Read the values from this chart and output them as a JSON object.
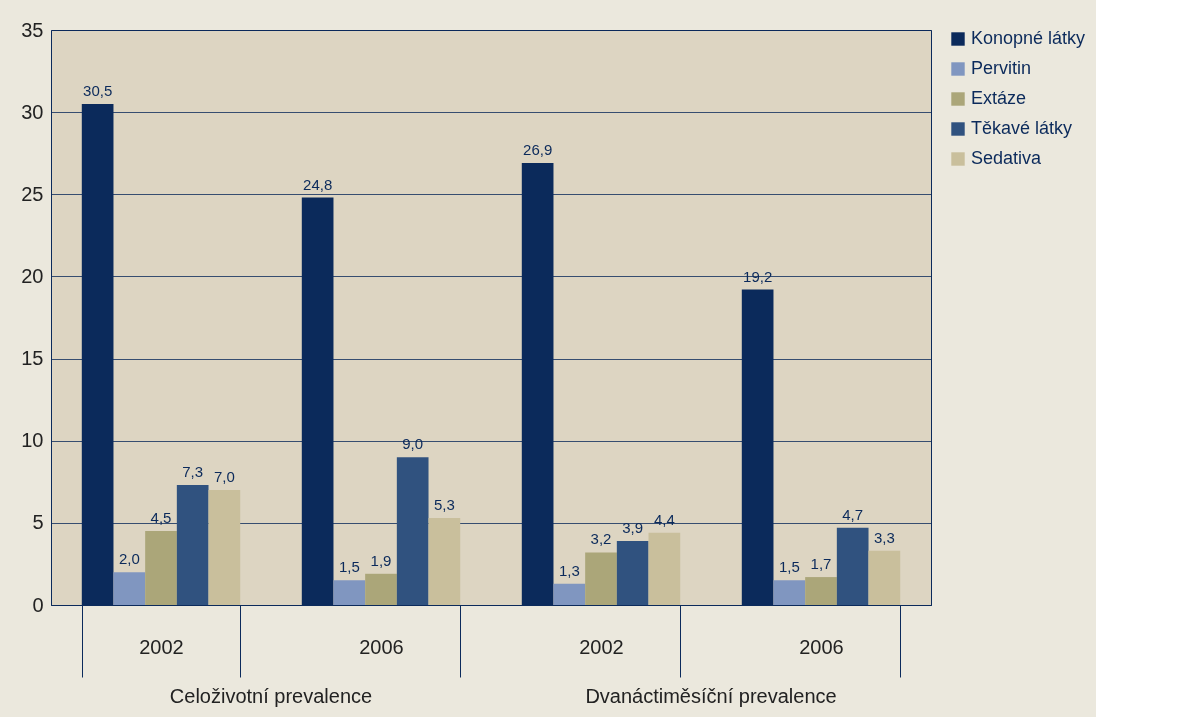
{
  "chart_data": {
    "type": "bar",
    "categories": [
      "2002",
      "2006",
      "2002",
      "2006"
    ],
    "annotations": [
      "Celoživotní prevalence",
      "Dvanáctiměsíční prevalence"
    ],
    "series": [
      {
        "name": "Konopné látky",
        "color": "#0b2a5b",
        "values": [
          30.5,
          24.8,
          26.9,
          19.2
        ],
        "value_labels": [
          "30,5",
          "24,8",
          "26,9",
          "19,2"
        ]
      },
      {
        "name": "Pervitin",
        "color": "#8096c0",
        "values": [
          2.0,
          1.5,
          1.3,
          1.5
        ],
        "value_labels": [
          "2,0",
          "1,5",
          "1,3",
          "1,5"
        ]
      },
      {
        "name": "Extáze",
        "color": "#aba679",
        "values": [
          4.5,
          1.9,
          3.2,
          1.7
        ],
        "value_labels": [
          "4,5",
          "1,9",
          "3,2",
          "1,7"
        ]
      },
      {
        "name": "Těkavé látky",
        "color": "#30527f",
        "values": [
          7.3,
          9.0,
          3.9,
          4.7
        ],
        "value_labels": [
          "7,3",
          "9,0",
          "3,9",
          "4,7"
        ]
      },
      {
        "name": "Sedativa",
        "color": "#c9bf9c",
        "values": [
          7.0,
          5.3,
          4.4,
          3.3
        ],
        "value_labels": [
          "7,0",
          "5,3",
          "4,4",
          "3,3"
        ]
      }
    ],
    "ylim": [
      0,
      35
    ],
    "yticks": [
      0,
      5,
      10,
      15,
      20,
      25,
      30,
      35
    ],
    "grid": "y",
    "legend": "right"
  }
}
